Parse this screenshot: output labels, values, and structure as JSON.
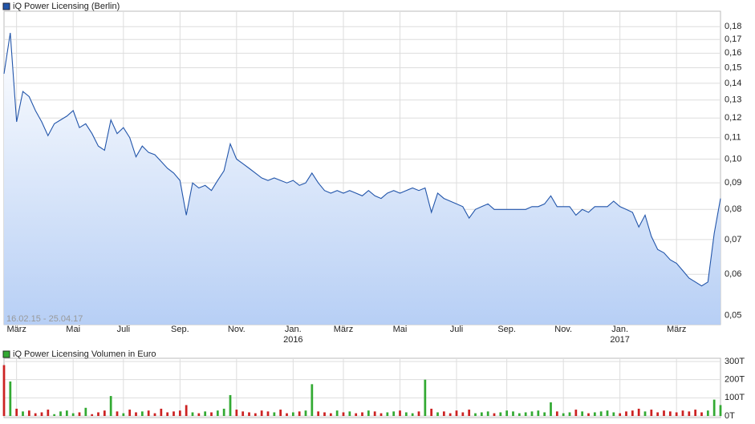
{
  "chart_data": [
    {
      "type": "line",
      "title": "iQ Power Licensing (Berlin)",
      "color": "#2255aa",
      "fill": true,
      "log_scale": true,
      "grid": true,
      "date_range": "16.02.15 - 25.04.17",
      "categories": [
        null,
        null,
        "März",
        null,
        null,
        null,
        null,
        null,
        null,
        null,
        null,
        "Mai",
        null,
        null,
        null,
        null,
        null,
        null,
        null,
        "Juli",
        null,
        null,
        null,
        null,
        null,
        null,
        null,
        null,
        "Sep.",
        null,
        null,
        null,
        null,
        null,
        null,
        null,
        null,
        "Nov.",
        null,
        null,
        null,
        null,
        null,
        null,
        null,
        null,
        "Jan.",
        null,
        null,
        null,
        null,
        null,
        null,
        null,
        "März",
        null,
        null,
        null,
        null,
        null,
        null,
        null,
        null,
        "Mai",
        null,
        null,
        null,
        null,
        null,
        null,
        null,
        null,
        "Juli",
        null,
        null,
        null,
        null,
        null,
        null,
        null,
        "Sep.",
        null,
        null,
        null,
        null,
        null,
        null,
        null,
        null,
        "Nov.",
        null,
        null,
        null,
        null,
        null,
        null,
        null,
        null,
        "Jan.",
        null,
        null,
        null,
        null,
        null,
        null,
        null,
        null,
        "März",
        null,
        null,
        null,
        null,
        null,
        null,
        null
      ],
      "category_years": [
        null,
        null,
        null,
        null,
        null,
        null,
        null,
        null,
        null,
        null,
        null,
        null,
        null,
        null,
        null,
        null,
        null,
        null,
        null,
        null,
        null,
        null,
        null,
        null,
        null,
        null,
        null,
        null,
        null,
        null,
        null,
        null,
        null,
        null,
        null,
        null,
        null,
        null,
        null,
        null,
        null,
        null,
        null,
        null,
        null,
        null,
        "2016",
        null,
        null,
        null,
        null,
        null,
        null,
        null,
        null,
        null,
        null,
        null,
        null,
        null,
        null,
        null,
        null,
        null,
        null,
        null,
        null,
        null,
        null,
        null,
        null,
        null,
        null,
        null,
        null,
        null,
        null,
        null,
        null,
        null,
        null,
        null,
        null,
        null,
        null,
        null,
        null,
        null,
        null,
        null,
        null,
        null,
        null,
        null,
        null,
        null,
        null,
        null,
        "2017",
        null,
        null,
        null,
        null,
        null,
        null,
        null,
        null,
        null,
        null,
        null,
        null,
        null,
        null,
        null,
        null
      ],
      "values": [
        0.146,
        0.175,
        0.118,
        0.135,
        0.132,
        0.124,
        0.118,
        0.111,
        0.117,
        0.119,
        0.121,
        0.124,
        0.115,
        0.117,
        0.112,
        0.106,
        0.104,
        0.119,
        0.112,
        0.115,
        0.11,
        0.101,
        0.106,
        0.103,
        0.102,
        0.099,
        0.096,
        0.094,
        0.091,
        0.078,
        0.09,
        0.088,
        0.089,
        0.087,
        0.091,
        0.095,
        0.107,
        0.1,
        0.098,
        0.096,
        0.094,
        0.092,
        0.091,
        0.092,
        0.091,
        0.09,
        0.091,
        0.089,
        0.09,
        0.094,
        0.09,
        0.087,
        0.086,
        0.087,
        0.086,
        0.087,
        0.086,
        0.085,
        0.087,
        0.085,
        0.084,
        0.086,
        0.087,
        0.086,
        0.087,
        0.088,
        0.087,
        0.088,
        0.079,
        0.086,
        0.084,
        0.083,
        0.082,
        0.081,
        0.077,
        0.08,
        0.081,
        0.082,
        0.08,
        0.08,
        0.08,
        0.08,
        0.08,
        0.08,
        0.081,
        0.081,
        0.082,
        0.085,
        0.081,
        0.081,
        0.081,
        0.078,
        0.08,
        0.079,
        0.081,
        0.081,
        0.081,
        0.083,
        0.081,
        0.08,
        0.079,
        0.074,
        0.078,
        0.071,
        0.067,
        0.066,
        0.064,
        0.063,
        0.061,
        0.059,
        0.058,
        0.057,
        0.058,
        0.072,
        0.084
      ],
      "ylim": [
        0.048,
        0.19
      ],
      "yticks": [
        {
          "value": 0.05,
          "label": "0,05"
        },
        {
          "value": 0.06,
          "label": "0,06"
        },
        {
          "value": 0.07,
          "label": "0,07"
        },
        {
          "value": 0.08,
          "label": "0,08"
        },
        {
          "value": 0.09,
          "label": "0,09"
        },
        {
          "value": 0.1,
          "label": "0,10"
        },
        {
          "value": 0.11,
          "label": "0,11"
        },
        {
          "value": 0.12,
          "label": "0,12"
        },
        {
          "value": 0.13,
          "label": "0,13"
        },
        {
          "value": 0.14,
          "label": "0,14"
        },
        {
          "value": 0.15,
          "label": "0,15"
        },
        {
          "value": 0.16,
          "label": "0,16"
        },
        {
          "value": 0.17,
          "label": "0,17"
        },
        {
          "value": 0.18,
          "label": "0,18"
        }
      ]
    },
    {
      "type": "bar",
      "title": "iQ Power Licensing Volumen in Euro",
      "color": "#33aa33",
      "up_color": "#33aa33",
      "down_color": "#cc2222",
      "grid": true,
      "values": [
        280,
        190,
        40,
        25,
        30,
        15,
        20,
        35,
        10,
        25,
        30,
        15,
        20,
        45,
        10,
        20,
        30,
        110,
        25,
        15,
        35,
        20,
        25,
        30,
        15,
        40,
        20,
        25,
        30,
        60,
        20,
        15,
        25,
        20,
        30,
        40,
        115,
        35,
        25,
        20,
        15,
        30,
        25,
        20,
        35,
        15,
        20,
        25,
        30,
        175,
        25,
        20,
        15,
        30,
        20,
        25,
        15,
        20,
        30,
        25,
        15,
        20,
        25,
        30,
        20,
        15,
        25,
        200,
        40,
        20,
        25,
        15,
        30,
        20,
        35,
        15,
        20,
        25,
        15,
        20,
        30,
        25,
        15,
        20,
        25,
        30,
        20,
        75,
        25,
        15,
        20,
        35,
        25,
        15,
        20,
        25,
        30,
        20,
        15,
        25,
        30,
        40,
        25,
        35,
        20,
        30,
        25,
        20,
        30,
        25,
        35,
        20,
        30,
        90,
        60
      ],
      "ylim": [
        0,
        300
      ],
      "yticks": [
        {
          "value": 0,
          "label": "0T"
        },
        {
          "value": 100,
          "label": "100T"
        },
        {
          "value": 200,
          "label": "200T"
        },
        {
          "value": 300,
          "label": "300T"
        }
      ]
    }
  ]
}
